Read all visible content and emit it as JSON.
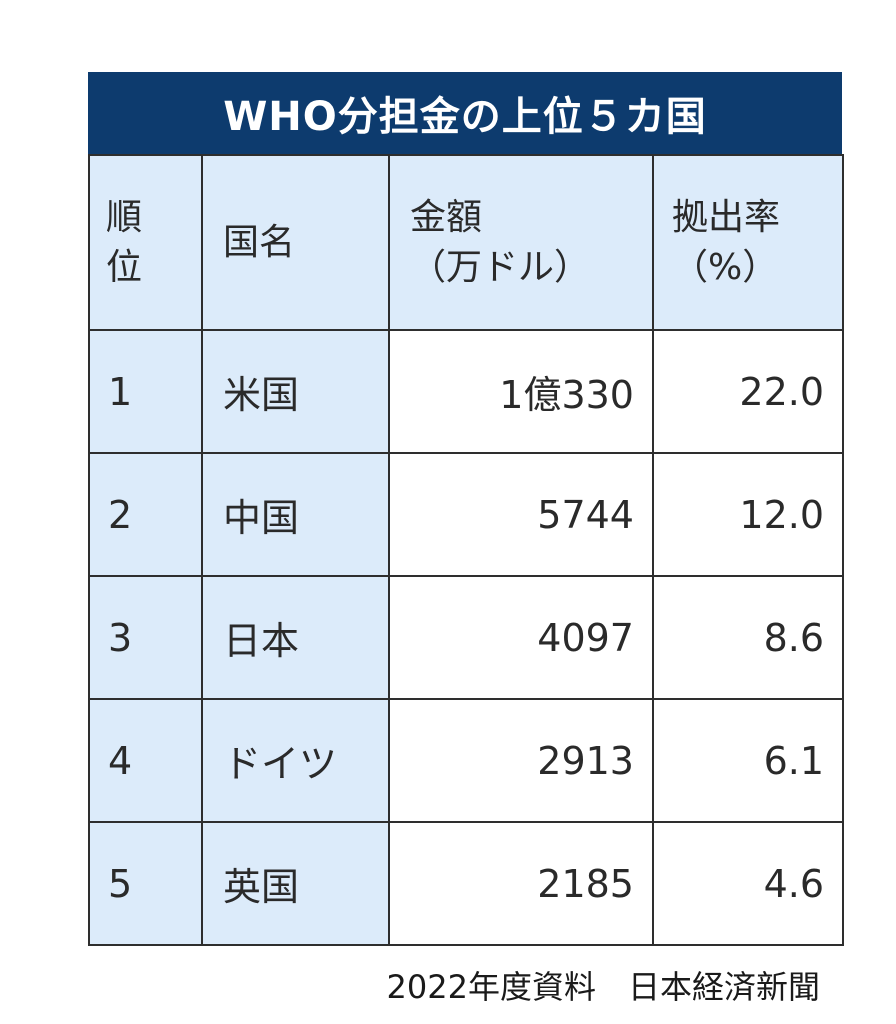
{
  "title": "WHO分担金の上位５カ国",
  "columns": {
    "rank": [
      "順",
      "位"
    ],
    "country": [
      "国名"
    ],
    "amount": [
      "金額",
      "（万ドル）"
    ],
    "rate": [
      "拠出率",
      "（%）"
    ]
  },
  "rows": [
    {
      "rank": "1",
      "country": "米国",
      "amount": "1億330",
      "rate": "22.0"
    },
    {
      "rank": "2",
      "country": "中国",
      "amount": "5744",
      "rate": "12.0"
    },
    {
      "rank": "3",
      "country": "日本",
      "amount": "4097",
      "rate": "8.6"
    },
    {
      "rank": "4",
      "country": "ドイツ",
      "amount": "2913",
      "rate": "6.1"
    },
    {
      "rank": "5",
      "country": "英国",
      "amount": "2185",
      "rate": "4.6"
    }
  ],
  "source": "2022年度資料　日本経済新聞",
  "colors": {
    "header_bg": "#0d3b6e",
    "label_cell_bg": "#dcebfa",
    "border": "#2e2e2e"
  },
  "chart_data": {
    "type": "table",
    "title": "WHO分担金の上位５カ国",
    "headers": [
      "順位",
      "国名",
      "金額（万ドル）",
      "拠出率（%）"
    ],
    "rows": [
      [
        "1",
        "米国",
        "1億330",
        "22.0"
      ],
      [
        "2",
        "中国",
        "5744",
        "12.0"
      ],
      [
        "3",
        "日本",
        "4097",
        "8.6"
      ],
      [
        "4",
        "ドイツ",
        "2913",
        "6.1"
      ],
      [
        "5",
        "英国",
        "2185",
        "4.6"
      ]
    ]
  }
}
